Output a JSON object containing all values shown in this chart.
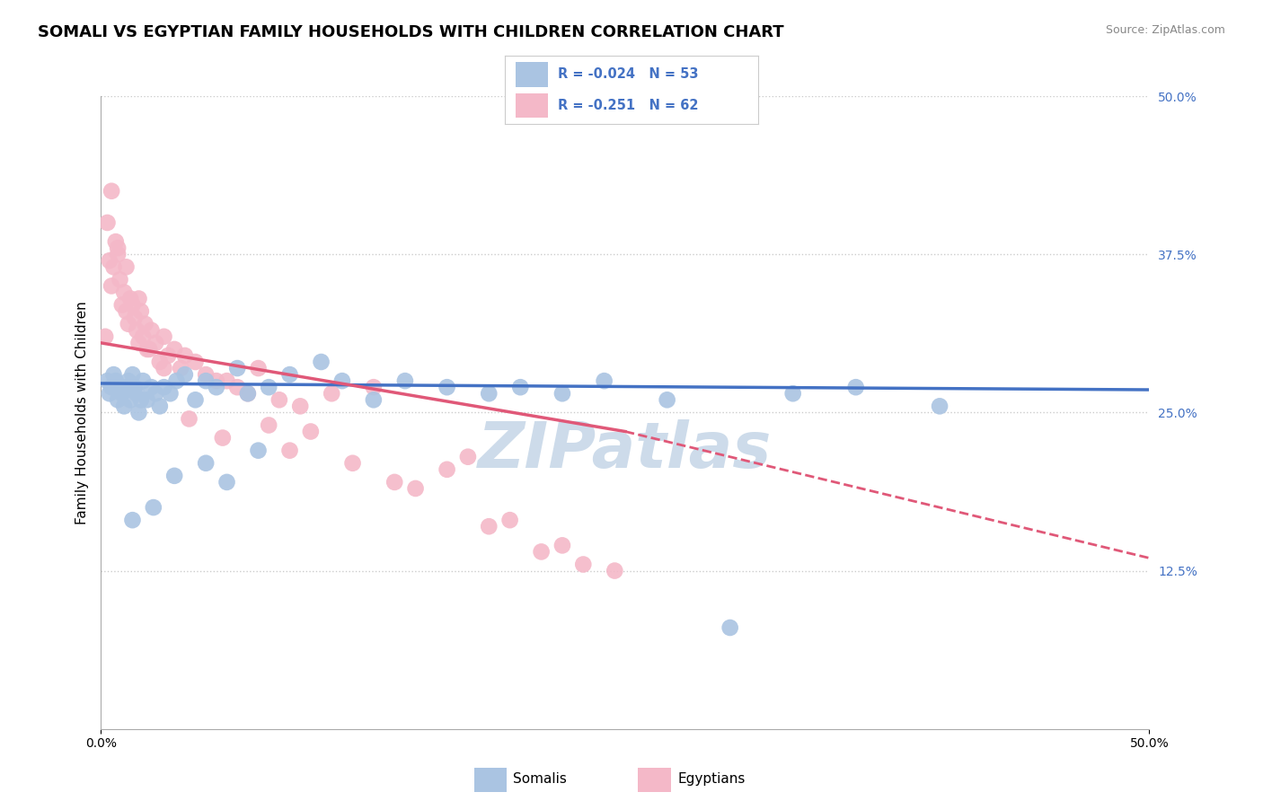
{
  "title": "SOMALI VS EGYPTIAN FAMILY HOUSEHOLDS WITH CHILDREN CORRELATION CHART",
  "source_text": "Source: ZipAtlas.com",
  "ylabel": "Family Households with Children",
  "xmin": 0.0,
  "xmax": 50.0,
  "ymin": 0.0,
  "ymax": 50.0,
  "ytick_vals_right": [
    12.5,
    25.0,
    37.5,
    50.0
  ],
  "ytick_labels_right": [
    "12.5%",
    "25.0%",
    "37.5%",
    "50.0%"
  ],
  "r1": "-0.024",
  "n1": "53",
  "r2": "-0.251",
  "n2": "62",
  "color_somali": "#aac4e2",
  "color_egyptian": "#f4b8c8",
  "line_color_somali": "#4472c4",
  "line_color_egyptian": "#e05878",
  "background_color": "#ffffff",
  "grid_color": "#cccccc",
  "watermark_text": "ZIPatlas",
  "watermark_color": "#c8d8e8",
  "title_fontsize": 13,
  "axis_label_fontsize": 11,
  "tick_fontsize": 10,
  "somali_x": [
    0.3,
    0.4,
    0.5,
    0.6,
    0.7,
    0.8,
    0.9,
    1.0,
    1.1,
    1.2,
    1.3,
    1.4,
    1.5,
    1.6,
    1.7,
    1.8,
    1.9,
    2.0,
    2.2,
    2.4,
    2.6,
    2.8,
    3.0,
    3.3,
    3.6,
    4.0,
    4.5,
    5.0,
    5.5,
    6.5,
    7.0,
    8.0,
    9.0,
    10.5,
    11.5,
    13.0,
    14.5,
    16.5,
    18.5,
    20.0,
    22.0,
    24.0,
    27.0,
    30.0,
    33.0,
    36.0,
    40.0,
    5.0,
    6.0,
    7.5,
    3.5,
    2.5,
    1.5
  ],
  "somali_y": [
    27.5,
    26.5,
    27.0,
    28.0,
    27.5,
    26.0,
    27.0,
    26.5,
    25.5,
    27.0,
    27.5,
    26.0,
    28.0,
    27.0,
    26.5,
    25.0,
    26.0,
    27.5,
    26.0,
    27.0,
    26.5,
    25.5,
    27.0,
    26.5,
    27.5,
    28.0,
    26.0,
    27.5,
    27.0,
    28.5,
    26.5,
    27.0,
    28.0,
    29.0,
    27.5,
    26.0,
    27.5,
    27.0,
    26.5,
    27.0,
    26.5,
    27.5,
    26.0,
    8.0,
    26.5,
    27.0,
    25.5,
    21.0,
    19.5,
    22.0,
    20.0,
    17.5,
    16.5
  ],
  "egyptian_x": [
    0.2,
    0.3,
    0.4,
    0.5,
    0.6,
    0.7,
    0.8,
    0.9,
    1.0,
    1.1,
    1.2,
    1.3,
    1.4,
    1.5,
    1.6,
    1.7,
    1.8,
    1.9,
    2.0,
    2.1,
    2.2,
    2.4,
    2.6,
    2.8,
    3.0,
    3.2,
    3.5,
    3.8,
    4.0,
    4.5,
    5.0,
    5.5,
    6.0,
    6.5,
    7.5,
    8.5,
    9.5,
    11.0,
    13.0,
    15.0,
    17.5,
    19.5,
    22.0,
    24.5,
    0.5,
    0.8,
    1.2,
    1.8,
    2.3,
    3.0,
    4.2,
    5.8,
    7.0,
    8.0,
    9.0,
    10.0,
    12.0,
    14.0,
    16.5,
    18.5,
    21.0,
    23.0
  ],
  "egyptian_y": [
    31.0,
    40.0,
    37.0,
    35.0,
    36.5,
    38.5,
    37.5,
    35.5,
    33.5,
    34.5,
    33.0,
    32.0,
    34.0,
    33.5,
    32.5,
    31.5,
    30.5,
    33.0,
    31.0,
    32.0,
    30.0,
    31.5,
    30.5,
    29.0,
    31.0,
    29.5,
    30.0,
    28.5,
    29.5,
    29.0,
    28.0,
    27.5,
    27.5,
    27.0,
    28.5,
    26.0,
    25.5,
    26.5,
    27.0,
    19.0,
    21.5,
    16.5,
    14.5,
    12.5,
    42.5,
    38.0,
    36.5,
    34.0,
    30.0,
    28.5,
    24.5,
    23.0,
    26.5,
    24.0,
    22.0,
    23.5,
    21.0,
    19.5,
    20.5,
    16.0,
    14.0,
    13.0
  ],
  "somali_line_x0": 0.0,
  "somali_line_y0": 27.3,
  "somali_line_x1": 50.0,
  "somali_line_y1": 26.8,
  "egyptian_solid_x0": 0.0,
  "egyptian_solid_y0": 30.5,
  "egyptian_solid_x1": 25.0,
  "egyptian_solid_y1": 23.5,
  "egyptian_dashed_x1": 50.0,
  "egyptian_dashed_y1": 13.5
}
